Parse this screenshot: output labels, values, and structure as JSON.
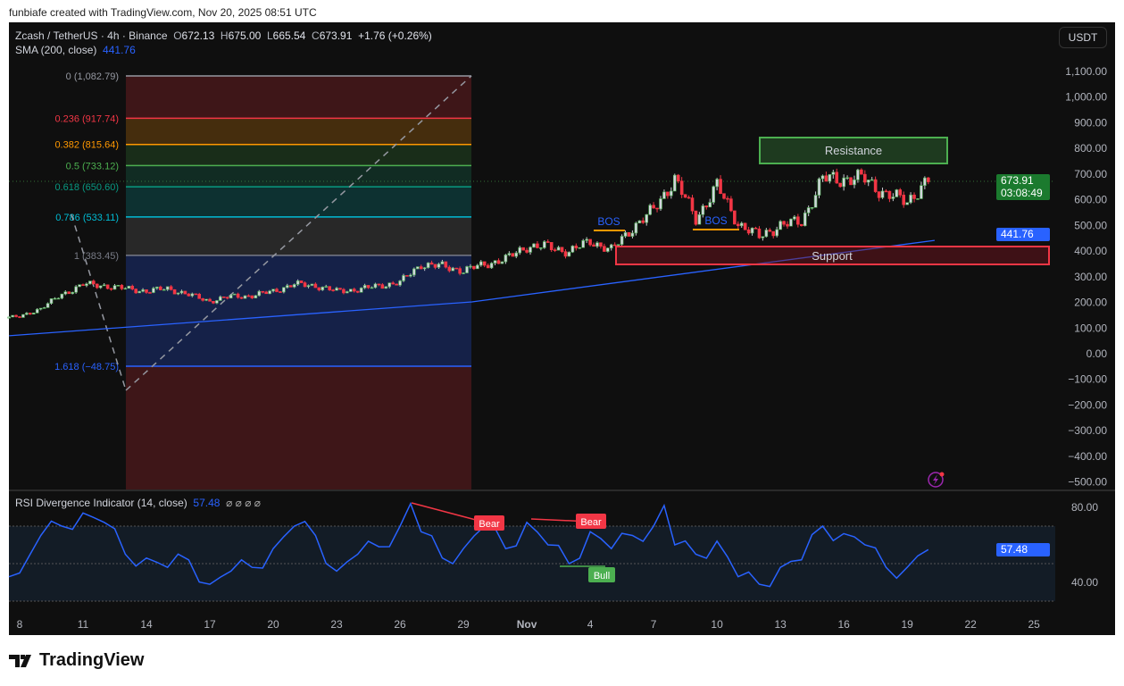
{
  "credit": "funbiafe created with TradingView.com, Nov 20, 2025 08:51 UTC",
  "header": {
    "symbol": "Zcash / TetherUS · 4h · Binance",
    "o_label": "O",
    "o": "672.13",
    "h_label": "H",
    "h": "675.00",
    "l_label": "L",
    "l": "665.54",
    "c_label": "C",
    "c": "673.91",
    "change": "+1.76 (+0.26%)",
    "sma_label": "SMA (200, close)",
    "sma_value": "441.76"
  },
  "currency": "USDT",
  "price_labels": {
    "last": "673.91",
    "countdown": "03:08:49",
    "sma": "441.76",
    "rsi": "57.48"
  },
  "rsi_legend": {
    "label": "RSI Divergence Indicator (14, close)",
    "value": "57.48",
    "icons": "⌀ ⌀ ⌀ ⌀"
  },
  "brand": "TradingView",
  "colors": {
    "up": "#4caf50",
    "down": "#f23645",
    "sma": "#2962ff",
    "rsi": "#2962ff",
    "background": "#0f0f0f"
  },
  "chart_data": {
    "type": "candlestick",
    "interval": "4h",
    "y_ticks": [
      "1,100.00",
      "1,000.00",
      "900.00",
      "800.00",
      "700.00",
      "600.00",
      "500.00",
      "400.00",
      "300.00",
      "200.00",
      "100.00",
      "0.00",
      "−100.00",
      "−200.00",
      "−300.00",
      "−400.00",
      "−500.00"
    ],
    "ylim": [
      -500,
      1100
    ],
    "x_ticks": [
      {
        "label": "8",
        "day": 0
      },
      {
        "label": "11",
        "day": 3
      },
      {
        "label": "14",
        "day": 6
      },
      {
        "label": "17",
        "day": 9
      },
      {
        "label": "20",
        "day": 12
      },
      {
        "label": "23",
        "day": 15
      },
      {
        "label": "26",
        "day": 18
      },
      {
        "label": "29",
        "day": 21
      },
      {
        "label": "Nov",
        "day": 24
      },
      {
        "label": "4",
        "day": 27
      },
      {
        "label": "7",
        "day": 30
      },
      {
        "label": "10",
        "day": 33
      },
      {
        "label": "13",
        "day": 36
      },
      {
        "label": "16",
        "day": 39
      },
      {
        "label": "19",
        "day": 42
      },
      {
        "label": "22",
        "day": 45
      },
      {
        "label": "25",
        "day": 48
      }
    ],
    "daily_close_approx": [
      143,
      177,
      230,
      271,
      265,
      254,
      244,
      254,
      230,
      205,
      223,
      226,
      244,
      271,
      265,
      244,
      250,
      265,
      278,
      348,
      341,
      324,
      348,
      369,
      418,
      418,
      397,
      439,
      404,
      491,
      560,
      682,
      526,
      654,
      508,
      456,
      501,
      515,
      682,
      682,
      682,
      620,
      595,
      673.91
    ],
    "sma200_approx": [
      {
        "day": -0.5,
        "value": 70
      },
      {
        "day": 21.4,
        "value": 202
      },
      {
        "day": 43.3,
        "value": 441.76
      }
    ],
    "fib": {
      "levels": [
        {
          "ratio": "0",
          "price": "1,082.79",
          "label": "0 (1,082.79)",
          "value": 1082.79,
          "color": "#9598a1"
        },
        {
          "ratio": "0.236",
          "label": "0.236 (917.74)",
          "value": 917.74,
          "color": "#f23645"
        },
        {
          "ratio": "0.382",
          "label": "0.382 (815.64)",
          "value": 815.64,
          "color": "#ff9800"
        },
        {
          "ratio": "0.5",
          "label": "0.5 (733.12)",
          "value": 733.12,
          "color": "#4caf50"
        },
        {
          "ratio": "0.618",
          "label": "0.618 (650.60)",
          "value": 650.6,
          "color": "#089981"
        },
        {
          "ratio": "0.786",
          "label": "0.786 (533.11)",
          "value": 533.11,
          "color": "#00bcd4"
        },
        {
          "ratio": "1",
          "label": "1 (383.45)",
          "value": 383.45,
          "color": "#787b86"
        },
        {
          "ratio": "1.618",
          "label": "1.618 (−48.75)",
          "value": -48.75,
          "color": "#2962ff"
        }
      ]
    },
    "annotations": {
      "resistance": "Resistance",
      "support": "Support",
      "bos1": "BOS",
      "bos2": "BOS"
    },
    "rsi": {
      "ylim": [
        20,
        90
      ],
      "y_ticks": [
        "80.00",
        "40.00"
      ],
      "bands": [
        30,
        50,
        70
      ],
      "daily_approx": [
        45,
        65,
        70,
        77,
        72,
        55,
        53,
        48,
        52,
        39,
        46,
        48,
        58,
        70,
        65,
        46,
        55,
        59,
        70,
        67,
        53,
        58,
        70,
        58,
        72,
        60,
        50,
        67,
        58,
        65,
        70,
        60,
        55,
        62,
        43,
        39,
        48,
        52,
        70,
        66,
        60,
        48,
        48,
        57.48
      ],
      "peaks": [
        {
          "day": 18.5,
          "value": 82
        },
        {
          "day": 30.5,
          "value": 81
        }
      ],
      "divergences": [
        {
          "label": "Bear",
          "type": "bearish"
        },
        {
          "label": "Bear",
          "type": "bearish"
        },
        {
          "label": "Bull",
          "type": "bullish"
        }
      ]
    }
  }
}
